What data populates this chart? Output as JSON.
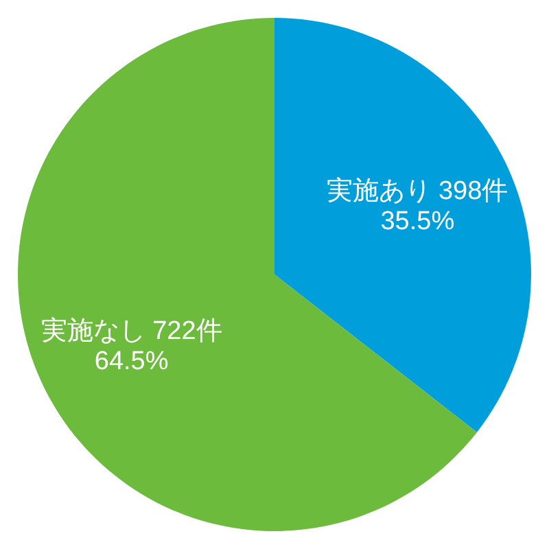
{
  "chart_data": {
    "type": "pie",
    "categories": [
      "実施あり",
      "実施なし"
    ],
    "values": [
      398,
      722
    ],
    "value_labels": [
      "398件\n35.5%",
      "722件\n64.5%"
    ],
    "colors": [
      "#009fdb",
      "#6cbb3c"
    ],
    "legend": false
  }
}
